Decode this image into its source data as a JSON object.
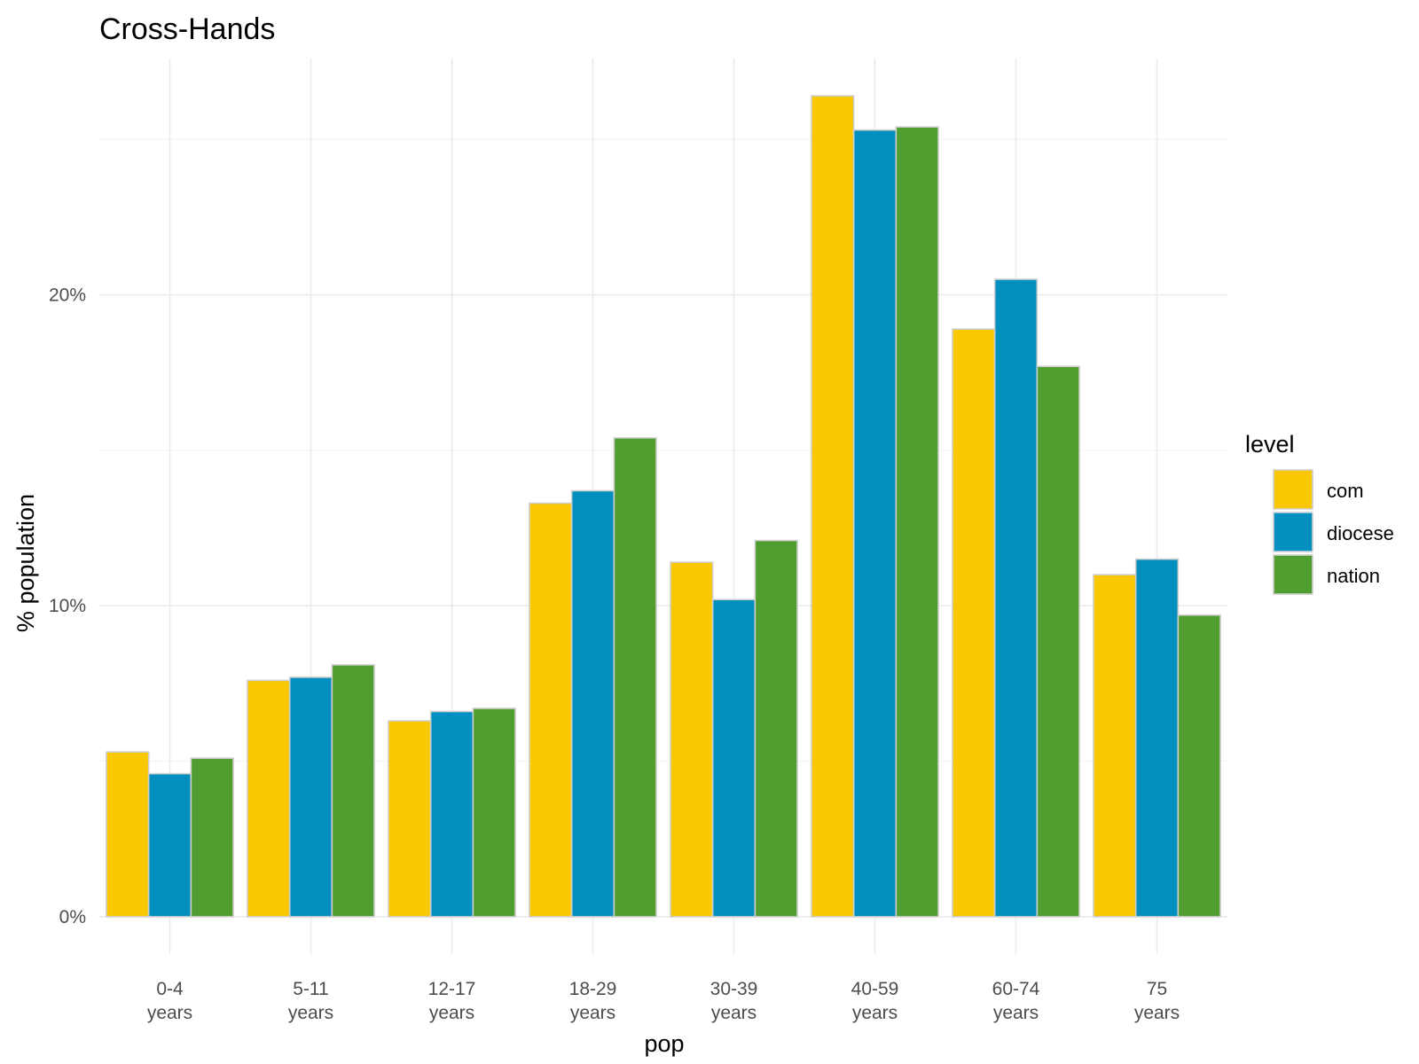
{
  "chart_data": {
    "type": "bar",
    "title": "Cross-Hands",
    "xlabel": "pop",
    "ylabel": "% population",
    "categories": [
      [
        "0-4",
        "years"
      ],
      [
        "5-11",
        "years"
      ],
      [
        "12-17",
        "years"
      ],
      [
        "18-29",
        "years"
      ],
      [
        "30-39",
        "years"
      ],
      [
        "40-59",
        "years"
      ],
      [
        "60-74",
        "years"
      ],
      [
        "75",
        "years"
      ]
    ],
    "series": [
      {
        "name": "com",
        "color": "#F9C800",
        "values": [
          5.3,
          7.6,
          6.3,
          13.3,
          11.4,
          26.4,
          18.9,
          11.0
        ]
      },
      {
        "name": "diocese",
        "color": "#008FBE",
        "values": [
          4.6,
          7.7,
          6.6,
          13.7,
          10.2,
          25.3,
          20.5,
          11.5
        ]
      },
      {
        "name": "nation",
        "color": "#509E2F",
        "values": [
          5.1,
          8.1,
          6.7,
          15.4,
          12.1,
          25.4,
          17.7,
          9.7
        ]
      }
    ],
    "ylim": [
      -1.2,
      27.6
    ],
    "yticks": [
      0,
      10,
      20
    ],
    "ytick_labels": [
      "0%",
      "10%",
      "20%"
    ],
    "legend": {
      "title": "level",
      "position": "right"
    },
    "grid": true
  }
}
